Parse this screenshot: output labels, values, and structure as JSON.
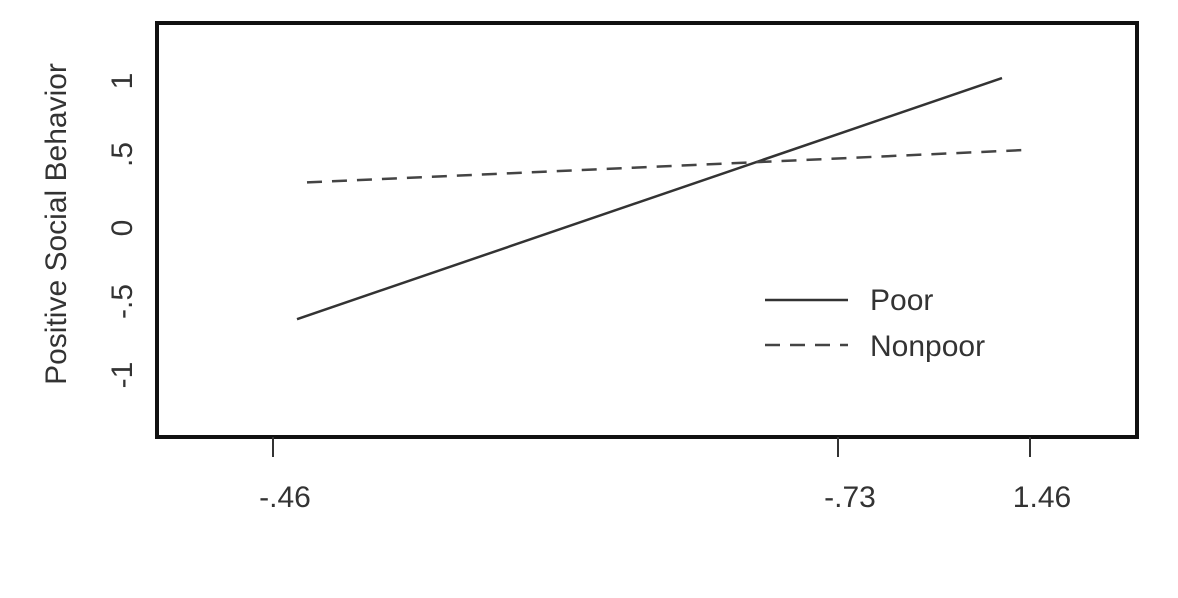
{
  "chart_data": {
    "type": "line",
    "title": "",
    "xlabel": "",
    "ylabel": "Positive Social Behavior",
    "x_ticks": [
      "-.46",
      "-.73",
      "1.46"
    ],
    "y_ticks": [
      {
        "value": 1,
        "label": "1"
      },
      {
        "value": 0.5,
        "label": ".5"
      },
      {
        "value": 0,
        "label": "0"
      },
      {
        "value": -0.5,
        "label": "-.5"
      },
      {
        "value": -1,
        "label": "-1"
      }
    ],
    "ylim": [
      -1.3,
      1.4
    ],
    "grid": false,
    "legend_position": "bottom-right",
    "series": [
      {
        "name": "Poor",
        "style": "solid",
        "color": "#333333",
        "points": [
          {
            "x": "-.46",
            "y": -0.62
          },
          {
            "x": "1.46",
            "y": 1.02
          }
        ]
      },
      {
        "name": "Nonpoor",
        "style": "dashed",
        "color": "#444444",
        "points": [
          {
            "x": "-.46",
            "y": 0.31
          },
          {
            "x": "1.46",
            "y": 0.53
          }
        ]
      }
    ]
  }
}
